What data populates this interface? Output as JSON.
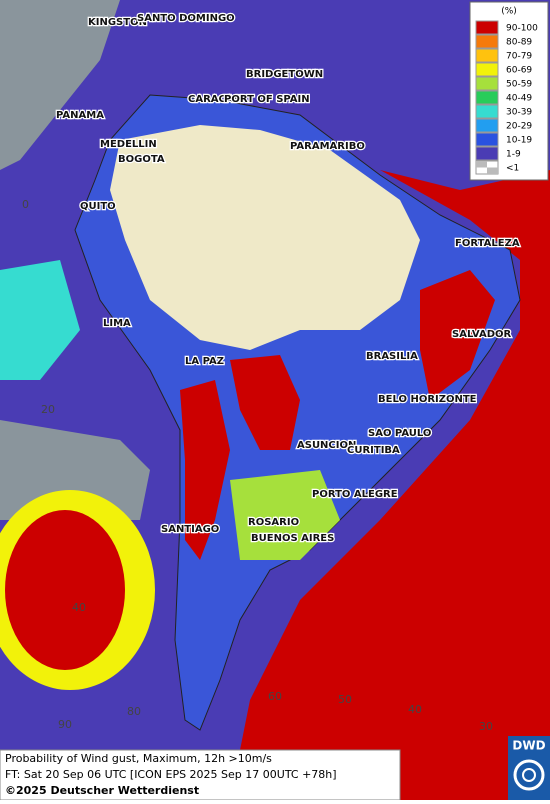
{
  "legend": {
    "title": "(%)",
    "items": [
      {
        "label": "90-100",
        "color": "#cc0000"
      },
      {
        "label": "80-89",
        "color": "#f57a0a"
      },
      {
        "label": "70-79",
        "color": "#ffc20e"
      },
      {
        "label": "60-69",
        "color": "#f2f20a"
      },
      {
        "label": "50-59",
        "color": "#a6e03c"
      },
      {
        "label": "40-49",
        "color": "#28cc5a"
      },
      {
        "label": "30-39",
        "color": "#36dcd0"
      },
      {
        "label": "20-29",
        "color": "#229ef0"
      },
      {
        "label": "10-19",
        "color": "#2a52e0"
      },
      {
        "label": "1-9",
        "color": "#4a3cb4"
      },
      {
        "label": "<1",
        "color": "#bbbbbb"
      }
    ]
  },
  "cities": [
    "KINGSTON",
    "SANTO DOMINGO",
    "BRIDGETOWN",
    "CARACAS",
    "PORT OF SPAIN",
    "PANAMA",
    "MEDELLIN",
    "BOGOTA",
    "PARAMARIBO",
    "QUITO",
    "FORTALEZA",
    "LIMA",
    "SALVADOR",
    "BRASILIA",
    "LA PAZ",
    "BELO HORIZONTE",
    "SAO PAULO",
    "ASUNCION",
    "CURITIBA",
    "PORTO ALEGRE",
    "SANTIAGO",
    "ROSARIO",
    "BUENOS AIRES"
  ],
  "graticule": [
    "0",
    "20",
    "40",
    "90",
    "80",
    "60",
    "50",
    "40",
    "30"
  ],
  "footer": {
    "product": "Probability of Wind gust, Maximum, 12h >10m/s",
    "forecast": "FT: Sat 20 Sep 06 UTC [ICON EPS 2025 Sep 17 00UTC +78h]",
    "copyright": "©2025 Deutscher Wetterdienst"
  },
  "logo": "DWD"
}
